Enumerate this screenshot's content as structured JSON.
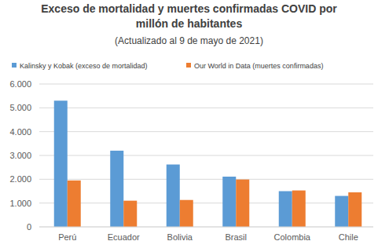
{
  "chart_data": {
    "type": "bar",
    "title": "Exceso de mortalidad y muertes confirmadas COVID por millón de habitantes",
    "subtitle": "(Actualizado al 9 de mayo de 2021)",
    "categories": [
      "Perú",
      "Ecuador",
      "Bolivia",
      "Brasil",
      "Colombia",
      "Chile"
    ],
    "series": [
      {
        "name": "Kalinsky y Kobak (exceso de mortalidad)",
        "color": "#5b9bd5",
        "values": [
          5300,
          3200,
          2620,
          2110,
          1500,
          1300
        ]
      },
      {
        "name": "Our World in Data (muertes confirmadas)",
        "color": "#ed7d31",
        "values": [
          1950,
          1100,
          1130,
          1990,
          1530,
          1450
        ]
      }
    ],
    "ylim": [
      0,
      6000
    ],
    "yticks": [
      0,
      {
        "value": 1000,
        "label": "1.000"
      },
      {
        "value": 2000,
        "label": "2.000"
      },
      {
        "value": 3000,
        "label": "3.000"
      },
      {
        "value": 4000,
        "label": "4.000"
      },
      {
        "value": 5000,
        "label": "5.000"
      },
      {
        "value": 6000,
        "label": "6.000"
      }
    ],
    "grid": true,
    "legend": "top"
  }
}
